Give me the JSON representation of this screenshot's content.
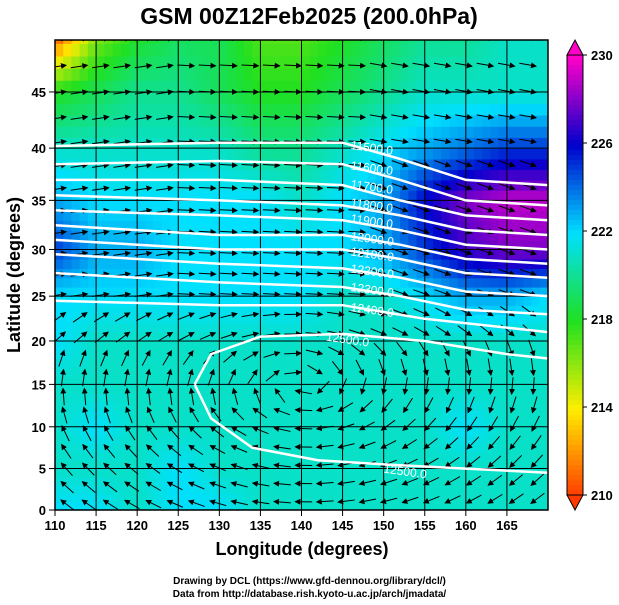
{
  "chart_data": {
    "type": "heatmap",
    "title": "GSM 00Z12Feb2025 (200.0hPa)",
    "xlabel": "Longitude (degrees)",
    "ylabel": "Latitude  (degrees)",
    "xlim": [
      110,
      170
    ],
    "ylim": [
      0,
      49.5
    ],
    "projection": "mercator",
    "grid": true,
    "xticks": [
      "110",
      "115",
      "120",
      "125",
      "130",
      "135",
      "140",
      "145",
      "150",
      "155",
      "160",
      "165"
    ],
    "yticks": [
      "0",
      "5",
      "10",
      "15",
      "20",
      "25",
      "30",
      "35",
      "40",
      "45"
    ],
    "colorbar": {
      "range": [
        210,
        230
      ],
      "tick_labels": [
        "230",
        "226",
        "222",
        "218",
        "214",
        "210"
      ],
      "colors": [
        "#ff00c8",
        "#0000cc",
        "#00e0ff",
        "#20e020",
        "#ffee00",
        "#ff3a00"
      ]
    },
    "temperature_grid": {
      "lons": [
        110,
        115,
        120,
        125,
        130,
        135,
        140,
        145,
        150,
        155,
        160,
        165,
        170
      ],
      "lats": [
        50,
        45,
        40,
        35,
        30,
        25,
        20,
        15,
        10,
        5,
        0
      ],
      "values": [
        [
          210,
          216,
          218,
          219,
          219,
          217,
          217,
          218,
          219,
          220,
          220,
          221,
          221
        ],
        [
          218,
          219,
          220,
          220,
          219,
          218,
          218,
          219,
          220,
          221,
          221,
          221,
          221
        ],
        [
          221,
          221,
          221,
          221,
          221,
          220,
          220,
          221,
          222,
          223,
          224,
          225,
          225
        ],
        [
          223,
          222,
          222,
          222,
          222,
          222,
          221,
          222,
          223,
          226,
          228,
          229,
          229
        ],
        [
          225,
          223,
          223,
          222,
          222,
          222,
          222,
          222,
          223,
          225,
          227,
          228,
          228
        ],
        [
          222,
          222,
          222,
          222,
          222,
          222,
          222,
          221,
          221,
          222,
          223,
          223,
          222
        ],
        [
          222,
          221,
          221,
          221,
          221,
          221,
          221,
          221,
          221,
          221,
          221,
          221,
          221
        ],
        [
          221,
          221,
          221,
          221,
          221,
          221,
          221,
          221,
          221,
          221,
          221,
          221,
          221
        ],
        [
          221,
          222,
          221,
          221,
          221,
          221,
          221,
          221,
          221,
          221,
          222,
          221,
          221
        ],
        [
          221,
          221,
          221,
          222,
          221,
          221,
          221,
          221,
          221,
          221,
          221,
          221,
          221
        ],
        [
          222,
          222,
          221,
          222,
          222,
          221,
          221,
          221,
          221,
          221,
          221,
          221,
          221
        ]
      ]
    },
    "height_contours": [
      {
        "label": "11500.0",
        "points": [
          [
            110,
            40.2
          ],
          [
            130,
            40.5
          ],
          [
            145,
            40.5
          ],
          [
            152,
            39
          ],
          [
            160,
            37
          ],
          [
            170,
            36.5
          ]
        ],
        "label_at": [
          146,
          40.3
        ]
      },
      {
        "label": "11600.0",
        "points": [
          [
            110,
            38.5
          ],
          [
            130,
            38.8
          ],
          [
            145,
            38.5
          ],
          [
            152,
            37
          ],
          [
            160,
            35
          ],
          [
            170,
            34.5
          ]
        ],
        "label_at": [
          146,
          38.4
        ]
      },
      {
        "label": "11700.0",
        "points": [
          [
            110,
            37
          ],
          [
            130,
            37
          ],
          [
            145,
            36.5
          ],
          [
            152,
            35
          ],
          [
            160,
            33.5
          ],
          [
            170,
            33
          ]
        ],
        "label_at": [
          146,
          36.6
        ]
      },
      {
        "label": "11800.0",
        "points": [
          [
            110,
            35.5
          ],
          [
            130,
            35
          ],
          [
            145,
            34.5
          ],
          [
            152,
            33.5
          ],
          [
            160,
            32
          ],
          [
            170,
            31.5
          ]
        ],
        "label_at": [
          146,
          34.8
        ]
      },
      {
        "label": "11900.0",
        "points": [
          [
            110,
            34
          ],
          [
            130,
            33.5
          ],
          [
            145,
            33
          ],
          [
            152,
            32
          ],
          [
            160,
            30.5
          ],
          [
            170,
            30
          ]
        ],
        "label_at": [
          146,
          33.2
        ]
      },
      {
        "label": "12000.0",
        "points": [
          [
            110,
            32.5
          ],
          [
            130,
            31.5
          ],
          [
            145,
            31.5
          ],
          [
            152,
            30.5
          ],
          [
            160,
            29
          ],
          [
            170,
            28.5
          ]
        ],
        "label_at": [
          146,
          31.4
        ]
      },
      {
        "label": "12100.0",
        "points": [
          [
            110,
            31
          ],
          [
            130,
            30
          ],
          [
            145,
            30
          ],
          [
            152,
            29
          ],
          [
            160,
            27.5
          ],
          [
            170,
            27
          ]
        ],
        "label_at": [
          146,
          29.8
        ]
      },
      {
        "label": "12200.0",
        "points": [
          [
            110,
            29.5
          ],
          [
            130,
            28.5
          ],
          [
            145,
            28
          ],
          [
            152,
            27
          ],
          [
            160,
            25.5
          ],
          [
            170,
            25
          ]
        ],
        "label_at": [
          146,
          28
        ]
      },
      {
        "label": "12300.0",
        "points": [
          [
            110,
            27.5
          ],
          [
            130,
            26.5
          ],
          [
            145,
            26
          ],
          [
            152,
            25
          ],
          [
            160,
            23.5
          ],
          [
            170,
            23
          ]
        ],
        "label_at": [
          146,
          26
        ]
      },
      {
        "label": "12400.0",
        "points": [
          [
            110,
            24.5
          ],
          [
            130,
            24
          ],
          [
            145,
            24
          ],
          [
            155,
            22.5
          ],
          [
            170,
            21
          ]
        ],
        "label_at": [
          146,
          23.8
        ]
      },
      {
        "label": "12500.0",
        "points": [
          [
            127,
            15
          ],
          [
            129,
            18.5
          ],
          [
            135,
            20.5
          ],
          [
            145,
            20.8
          ],
          [
            155,
            20
          ],
          [
            165,
            18.5
          ],
          [
            170,
            18
          ]
        ],
        "label_at": [
          143,
          20.5
        ]
      },
      {
        "label": "12500.0",
        "points": [
          [
            127,
            15
          ],
          [
            129,
            11
          ],
          [
            134,
            7.5
          ],
          [
            142,
            6
          ],
          [
            150,
            5.5
          ],
          [
            160,
            5
          ],
          [
            170,
            4.5
          ]
        ],
        "label_at": [
          150,
          5
        ]
      }
    ],
    "wind": {
      "type": "streamlines",
      "anticyclone_center": [
        140,
        15
      ]
    }
  },
  "footer": {
    "line1": "Drawing by DCL (https://www.gfd-dennou.org/library/dcl/)",
    "line2": "Data from http://database.rish.kyoto-u.ac.jp/arch/jmadata/"
  }
}
